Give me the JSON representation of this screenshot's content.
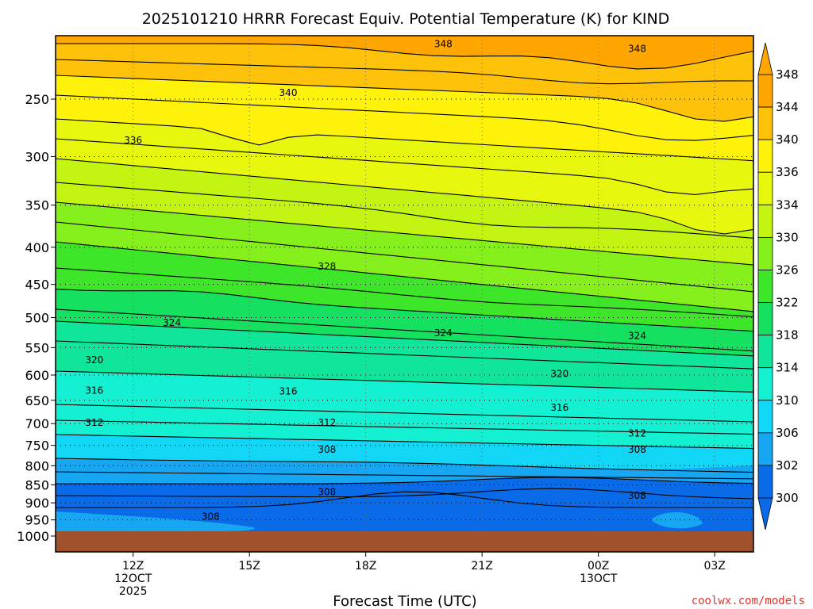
{
  "title": "2025101210 HRRR Forecast Equiv. Potential Temperature (K) for KIND",
  "xlabel": "Forecast Time (UTC)",
  "credit": "coolwx.com/models",
  "colors": {
    "ground": "#a0522d",
    "contour": "#000000",
    "fills": [
      "#0a6be8",
      "#17a6f2",
      "#12d6f5",
      "#14f0d2",
      "#10e69a",
      "#16e060",
      "#3ee62a",
      "#86f01c",
      "#c4f512",
      "#e8f70e",
      "#fff20a",
      "#ffc20a",
      "#ffa600"
    ]
  },
  "chart_data": {
    "type": "heatmap",
    "subtype": "time-height contour",
    "variable": "Equivalent potential temperature (K)",
    "station": "KIND",
    "init": "2025101210",
    "x_unit": "hours from 2025-10-12 10Z",
    "xlim": [
      0,
      18
    ],
    "y_unit": "hPa",
    "ylim": [
      1000,
      200
    ],
    "y_scale": "log",
    "y_ticks": [
      "250",
      "300",
      "350",
      "400",
      "450",
      "500",
      "550",
      "600",
      "650",
      "700",
      "750",
      "800",
      "850",
      "900",
      "950",
      "1000"
    ],
    "x_ticks": [
      {
        "value": 2,
        "label": "12Z",
        "sub": [
          "12OCT",
          "2025"
        ]
      },
      {
        "value": 5,
        "label": "15Z",
        "sub": []
      },
      {
        "value": 8,
        "label": "18Z",
        "sub": []
      },
      {
        "value": 11,
        "label": "21Z",
        "sub": []
      },
      {
        "value": 14,
        "label": "00Z",
        "sub": [
          "13OCT"
        ]
      },
      {
        "value": 17,
        "label": "03Z",
        "sub": []
      }
    ],
    "colorbar_ticks": [
      "300",
      "302",
      "306",
      "310",
      "314",
      "318",
      "322",
      "326",
      "330",
      "334",
      "336",
      "340",
      "344",
      "348"
    ],
    "contour_interval": 2,
    "contour_labels": [
      {
        "label": "348",
        "x": 10.0,
        "p": 210
      },
      {
        "label": "348",
        "x": 15.0,
        "p": 213
      },
      {
        "label": "340",
        "x": 6.0,
        "p": 245
      },
      {
        "label": "336",
        "x": 2.0,
        "p": 285
      },
      {
        "label": "328",
        "x": 7.0,
        "p": 425
      },
      {
        "label": "324",
        "x": 3.0,
        "p": 508
      },
      {
        "label": "324",
        "x": 10.0,
        "p": 525
      },
      {
        "label": "324",
        "x": 15.0,
        "p": 530
      },
      {
        "label": "320",
        "x": 1.0,
        "p": 572
      },
      {
        "label": "320",
        "x": 13.0,
        "p": 598
      },
      {
        "label": "316",
        "x": 1.0,
        "p": 630
      },
      {
        "label": "316",
        "x": 6.0,
        "p": 632
      },
      {
        "label": "316",
        "x": 13.0,
        "p": 665
      },
      {
        "label": "312",
        "x": 1.0,
        "p": 698
      },
      {
        "label": "312",
        "x": 7.0,
        "p": 698
      },
      {
        "label": "312",
        "x": 15.0,
        "p": 722
      },
      {
        "label": "308",
        "x": 7.0,
        "p": 760
      },
      {
        "label": "308",
        "x": 15.0,
        "p": 760
      },
      {
        "label": "308",
        "x": 7.0,
        "p": 870
      },
      {
        "label": "308",
        "x": 15.0,
        "p": 880
      },
      {
        "label": "308",
        "x": 4.0,
        "p": 940
      }
    ]
  }
}
